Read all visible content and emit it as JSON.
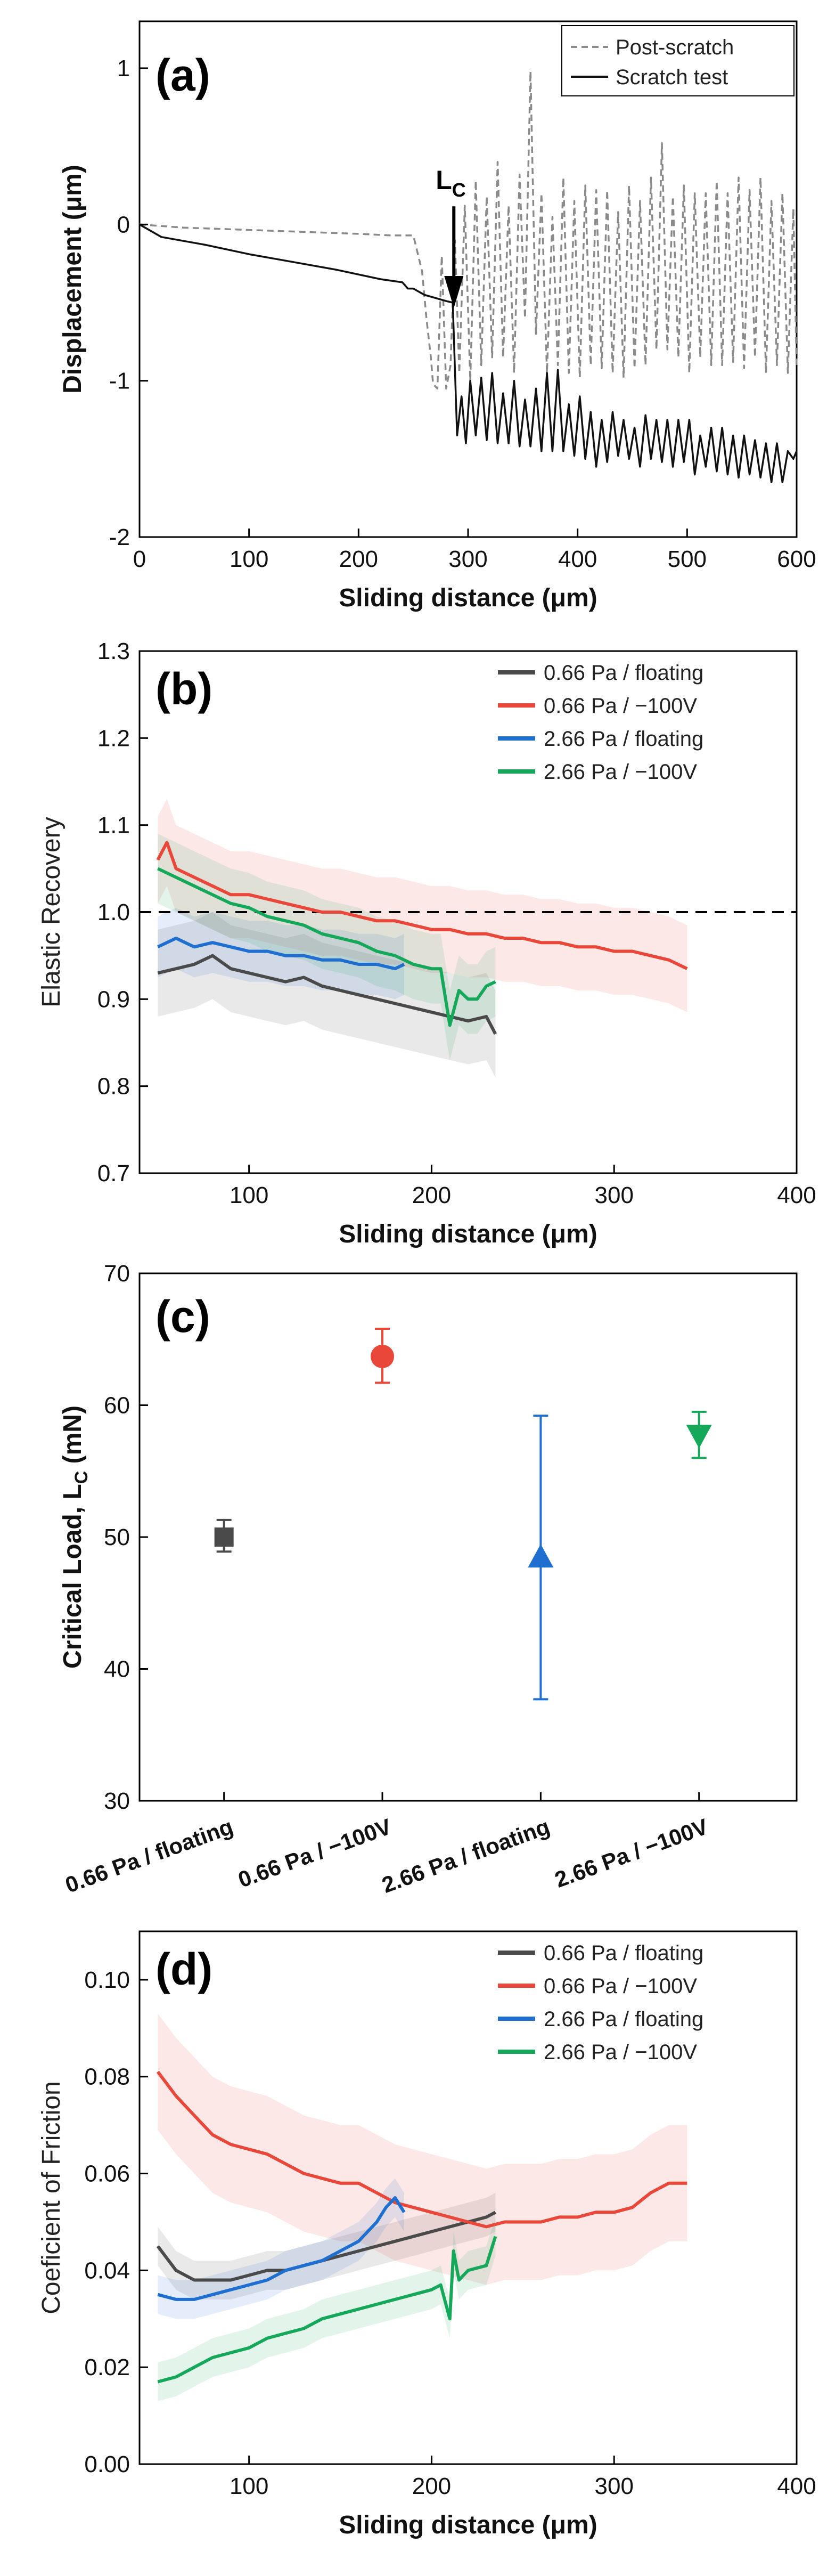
{
  "figure_title": "",
  "chart_data": [
    {
      "panel": "(a)",
      "type": "line",
      "title": "",
      "xlabel": "Sliding distance (μm)",
      "ylabel": "Displacement (μm)",
      "xlim": [
        0,
        600
      ],
      "ylim": [
        -2,
        1.3
      ],
      "xticks": [
        0,
        100,
        200,
        300,
        400,
        500,
        600
      ],
      "yticks": [
        -2,
        -1,
        0,
        1
      ],
      "xtick_labels": [
        "0",
        "100",
        "200",
        "300",
        "400",
        "500",
        "600"
      ],
      "ytick_labels": [
        "-2",
        "-1",
        "0",
        "1"
      ],
      "annotation": {
        "label_main": "L",
        "label_sub": "C",
        "x": 287,
        "y_head": -0.5,
        "y_tail": -0.02
      },
      "legend_position": "top-right",
      "series": [
        {
          "name": "Post-scratch",
          "style": "dashed",
          "color": "#8a8a8a",
          "x": [
            0,
            40,
            80,
            120,
            160,
            200,
            230,
            250,
            258,
            262,
            266,
            268,
            272,
            276,
            280,
            284,
            288,
            292,
            297,
            302,
            307,
            312,
            317,
            322,
            327,
            332,
            337,
            342,
            347,
            352,
            357,
            362,
            367,
            372,
            377,
            382,
            387,
            392,
            397,
            402,
            407,
            412,
            417,
            422,
            427,
            432,
            437,
            442,
            447,
            452,
            457,
            462,
            467,
            472,
            477,
            482,
            487,
            492,
            497,
            502,
            507,
            512,
            517,
            522,
            527,
            532,
            537,
            542,
            547,
            552,
            557,
            562,
            567,
            572,
            577,
            582,
            587,
            592,
            597,
            600
          ],
          "y": [
            0,
            -0.02,
            -0.03,
            -0.04,
            -0.05,
            -0.06,
            -0.07,
            -0.07,
            -0.3,
            -0.6,
            -0.85,
            -1.02,
            -1.05,
            -0.2,
            -1.05,
            -0.9,
            -0.1,
            -0.95,
            0.12,
            -1.0,
            0.28,
            -0.9,
            0.18,
            -0.85,
            0.4,
            -0.85,
            0.12,
            -0.95,
            0.32,
            -0.6,
            0.98,
            -0.7,
            0.2,
            -0.95,
            0.05,
            -0.9,
            0.3,
            -0.95,
            0.15,
            -0.98,
            0.25,
            -0.9,
            0.22,
            -0.92,
            0.22,
            -0.95,
            0.08,
            -0.98,
            0.25,
            -0.92,
            0.15,
            -0.9,
            0.3,
            -0.8,
            0.52,
            -0.8,
            0.18,
            -0.85,
            0.25,
            -0.95,
            0.2,
            -0.85,
            0.2,
            -0.9,
            0.28,
            -0.9,
            0.2,
            -0.88,
            0.3,
            -0.92,
            0.22,
            -0.85,
            0.3,
            -0.95,
            0.15,
            -0.9,
            0.2,
            -0.95,
            0.1,
            -0.92
          ]
        },
        {
          "name": "Scratch test",
          "style": "solid",
          "color": "#111111",
          "x": [
            0,
            20,
            60,
            100,
            140,
            180,
            220,
            240,
            245,
            250,
            260,
            270,
            280,
            286,
            290,
            294,
            298,
            302,
            307,
            312,
            317,
            322,
            327,
            332,
            337,
            342,
            347,
            352,
            357,
            362,
            367,
            372,
            377,
            382,
            387,
            392,
            397,
            402,
            407,
            412,
            417,
            422,
            427,
            432,
            437,
            442,
            447,
            452,
            457,
            462,
            467,
            472,
            477,
            482,
            487,
            492,
            497,
            502,
            507,
            512,
            517,
            522,
            527,
            532,
            537,
            542,
            547,
            552,
            557,
            562,
            567,
            572,
            577,
            582,
            587,
            592,
            597,
            600
          ],
          "y": [
            0,
            -0.08,
            -0.13,
            -0.19,
            -0.24,
            -0.29,
            -0.35,
            -0.37,
            -0.41,
            -0.41,
            -0.45,
            -0.47,
            -0.49,
            -0.5,
            -1.35,
            -1.1,
            -1.4,
            -1.0,
            -1.35,
            -0.98,
            -1.38,
            -0.95,
            -1.4,
            -1.08,
            -1.4,
            -1.0,
            -1.42,
            -1.12,
            -1.42,
            -1.05,
            -1.45,
            -0.95,
            -1.45,
            -0.93,
            -1.45,
            -1.15,
            -1.48,
            -1.1,
            -1.5,
            -1.2,
            -1.55,
            -1.25,
            -1.52,
            -1.2,
            -1.48,
            -1.25,
            -1.5,
            -1.3,
            -1.55,
            -1.22,
            -1.5,
            -1.25,
            -1.52,
            -1.25,
            -1.55,
            -1.25,
            -1.52,
            -1.25,
            -1.6,
            -1.35,
            -1.55,
            -1.3,
            -1.58,
            -1.3,
            -1.6,
            -1.35,
            -1.62,
            -1.35,
            -1.6,
            -1.38,
            -1.62,
            -1.4,
            -1.65,
            -1.4,
            -1.65,
            -1.45,
            -1.5,
            -1.45
          ]
        }
      ]
    },
    {
      "panel": "(b)",
      "type": "line",
      "title": "",
      "xlabel": "Sliding distance (μm)",
      "ylabel": "Elastic Recovery",
      "xlim": [
        40,
        400
      ],
      "ylim": [
        0.7,
        1.3
      ],
      "xticks": [
        100,
        200,
        300,
        400
      ],
      "yticks": [
        0.7,
        0.8,
        0.9,
        1.0,
        1.1,
        1.2,
        1.3
      ],
      "xtick_labels": [
        "100",
        "200",
        "300",
        "400"
      ],
      "ytick_labels": [
        "0.7",
        "0.8",
        "0.9",
        "1.0",
        "1.1",
        "1.2",
        "1.3"
      ],
      "reference_line": {
        "y": 1.0,
        "style": "dashed"
      },
      "legend_position": "top-right",
      "series": [
        {
          "name": "0.66 Pa / floating",
          "color": "#4a4a4a",
          "band": 0.05,
          "x": [
            50,
            60,
            70,
            80,
            90,
            100,
            110,
            120,
            130,
            140,
            150,
            160,
            170,
            180,
            190,
            200,
            210,
            220,
            230,
            235
          ],
          "y": [
            0.93,
            0.935,
            0.94,
            0.95,
            0.935,
            0.93,
            0.925,
            0.92,
            0.925,
            0.915,
            0.91,
            0.905,
            0.9,
            0.895,
            0.89,
            0.885,
            0.88,
            0.875,
            0.88,
            0.86
          ]
        },
        {
          "name": "0.66 Pa / −100V",
          "color": "#e8473a",
          "band": 0.05,
          "x": [
            50,
            55,
            60,
            70,
            80,
            90,
            100,
            110,
            120,
            130,
            140,
            150,
            160,
            170,
            180,
            190,
            200,
            210,
            220,
            230,
            240,
            250,
            260,
            270,
            280,
            290,
            300,
            310,
            320,
            330,
            340
          ],
          "y": [
            1.06,
            1.08,
            1.05,
            1.04,
            1.03,
            1.02,
            1.02,
            1.015,
            1.01,
            1.005,
            1.0,
            1.0,
            0.995,
            0.99,
            0.99,
            0.985,
            0.98,
            0.98,
            0.975,
            0.975,
            0.97,
            0.97,
            0.965,
            0.965,
            0.96,
            0.96,
            0.955,
            0.955,
            0.95,
            0.945,
            0.935
          ]
        },
        {
          "name": "2.66 Pa / floating",
          "color": "#1e6fd0",
          "band": 0.035,
          "x": [
            50,
            60,
            70,
            80,
            90,
            100,
            110,
            120,
            130,
            140,
            150,
            160,
            170,
            180,
            185
          ],
          "y": [
            0.96,
            0.97,
            0.96,
            0.965,
            0.96,
            0.955,
            0.955,
            0.95,
            0.95,
            0.945,
            0.945,
            0.94,
            0.94,
            0.935,
            0.94
          ]
        },
        {
          "name": "2.66 Pa / −100V",
          "color": "#16a85a",
          "band": 0.04,
          "x": [
            50,
            60,
            70,
            80,
            90,
            100,
            110,
            120,
            130,
            140,
            150,
            160,
            170,
            180,
            190,
            200,
            205,
            210,
            215,
            220,
            225,
            230,
            235
          ],
          "y": [
            1.05,
            1.04,
            1.03,
            1.02,
            1.01,
            1.005,
            0.995,
            0.99,
            0.985,
            0.975,
            0.97,
            0.965,
            0.955,
            0.95,
            0.94,
            0.935,
            0.935,
            0.87,
            0.91,
            0.9,
            0.9,
            0.915,
            0.92
          ]
        }
      ]
    },
    {
      "panel": "(c)",
      "type": "scatter",
      "title": "",
      "xlabel": "",
      "ylabel": "Critical Load, L",
      "ylabel_sub": "C",
      "ylabel_suffix": " (mN)",
      "ylim": [
        30,
        70
      ],
      "yticks": [
        30,
        40,
        50,
        60,
        70
      ],
      "ytick_labels": [
        "30",
        "40",
        "50",
        "60",
        "70"
      ],
      "categories": [
        "0.66 Pa / floating",
        "0.66 Pa / −100V",
        "2.66 Pa / floating",
        "2.66 Pa / −100V"
      ],
      "values": [
        50.0,
        63.7,
        48.5,
        57.7
      ],
      "err_low": [
        1.1,
        2.0,
        10.8,
        1.7
      ],
      "err_high": [
        1.3,
        2.1,
        10.7,
        1.8
      ],
      "markers": [
        "square",
        "circle",
        "triangle-up",
        "triangle-down"
      ],
      "colors": [
        "#4a4a4a",
        "#e8473a",
        "#1e6fd0",
        "#16a85a"
      ]
    },
    {
      "panel": "(d)",
      "type": "line",
      "title": "",
      "xlabel": "Sliding distance (μm)",
      "ylabel": "Coeficient of Friction",
      "xlim": [
        40,
        400
      ],
      "ylim": [
        0.0,
        0.11
      ],
      "xticks": [
        100,
        200,
        300,
        400
      ],
      "yticks": [
        0.0,
        0.02,
        0.04,
        0.06,
        0.08,
        0.1
      ],
      "xtick_labels": [
        "100",
        "200",
        "300",
        "400"
      ],
      "ytick_labels": [
        "0.00",
        "0.02",
        "0.04",
        "0.06",
        "0.08",
        "0.10"
      ],
      "legend_position": "top-right",
      "series": [
        {
          "name": "0.66 Pa / floating",
          "color": "#4a4a4a",
          "band": 0.004,
          "x": [
            50,
            60,
            70,
            80,
            90,
            100,
            110,
            120,
            130,
            140,
            150,
            160,
            170,
            180,
            190,
            200,
            210,
            220,
            230,
            235
          ],
          "y": [
            0.045,
            0.04,
            0.038,
            0.038,
            0.038,
            0.039,
            0.04,
            0.04,
            0.041,
            0.042,
            0.043,
            0.044,
            0.045,
            0.046,
            0.047,
            0.048,
            0.049,
            0.05,
            0.051,
            0.052
          ]
        },
        {
          "name": "0.66 Pa / −100V",
          "color": "#e8473a",
          "band": 0.012,
          "x": [
            50,
            60,
            70,
            80,
            90,
            100,
            110,
            120,
            130,
            140,
            150,
            160,
            170,
            180,
            190,
            200,
            210,
            220,
            230,
            240,
            250,
            260,
            270,
            280,
            290,
            300,
            310,
            320,
            330,
            340
          ],
          "y": [
            0.081,
            0.076,
            0.072,
            0.068,
            0.066,
            0.065,
            0.064,
            0.062,
            0.06,
            0.059,
            0.058,
            0.058,
            0.056,
            0.054,
            0.053,
            0.052,
            0.051,
            0.05,
            0.049,
            0.05,
            0.05,
            0.05,
            0.051,
            0.051,
            0.052,
            0.052,
            0.053,
            0.056,
            0.058,
            0.058
          ]
        },
        {
          "name": "2.66 Pa / floating",
          "color": "#1e6fd0",
          "band": 0.004,
          "x": [
            50,
            60,
            70,
            80,
            90,
            100,
            110,
            120,
            130,
            140,
            150,
            160,
            170,
            175,
            180,
            185
          ],
          "y": [
            0.035,
            0.034,
            0.034,
            0.035,
            0.036,
            0.037,
            0.038,
            0.04,
            0.041,
            0.042,
            0.044,
            0.046,
            0.05,
            0.053,
            0.055,
            0.052
          ]
        },
        {
          "name": "2.66 Pa / −100V",
          "color": "#16a85a",
          "band": 0.004,
          "x": [
            50,
            60,
            70,
            80,
            90,
            100,
            110,
            120,
            130,
            140,
            150,
            160,
            170,
            180,
            190,
            200,
            205,
            210,
            212,
            215,
            220,
            230,
            235
          ],
          "y": [
            0.017,
            0.018,
            0.02,
            0.022,
            0.023,
            0.024,
            0.026,
            0.027,
            0.028,
            0.03,
            0.031,
            0.032,
            0.033,
            0.034,
            0.035,
            0.036,
            0.037,
            0.03,
            0.044,
            0.038,
            0.04,
            0.041,
            0.047
          ]
        }
      ]
    }
  ]
}
